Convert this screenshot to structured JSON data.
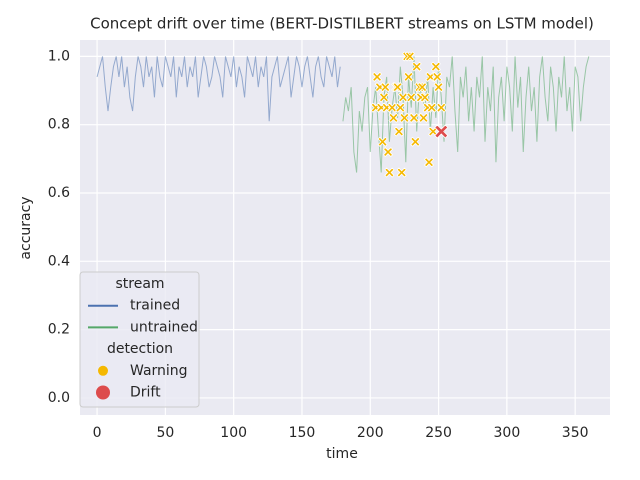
{
  "chart_data": {
    "type": "line",
    "title": "Concept drift over time (BERT-DISTILBERT streams on LSTM model)",
    "xlabel": "time",
    "ylabel": "accuracy",
    "xlim": [
      -12.5,
      375.5
    ],
    "ylim": [
      -0.05,
      1.048
    ],
    "xticks": [
      0,
      50,
      100,
      150,
      200,
      250,
      300,
      350
    ],
    "yticks": [
      {
        "value": 0,
        "label": "0.0"
      },
      0.2,
      0.4,
      0.6,
      0.8,
      {
        "value": 1,
        "label": "1.0"
      }
    ],
    "grid": true,
    "legend": {
      "loc": "lower left",
      "series_title": "stream",
      "detections_title": "detection"
    },
    "series": [
      {
        "name": "trained",
        "color": "#4c72b0",
        "x": [
          0,
          2,
          4,
          6,
          8,
          10,
          12,
          14,
          16,
          18,
          20,
          22,
          24,
          26,
          28,
          30,
          32,
          34,
          36,
          38,
          40,
          42,
          44,
          46,
          48,
          50,
          52,
          54,
          56,
          58,
          60,
          62,
          64,
          66,
          68,
          70,
          72,
          74,
          76,
          78,
          80,
          82,
          84,
          86,
          88,
          90,
          92,
          94,
          96,
          98,
          100,
          102,
          104,
          106,
          108,
          110,
          112,
          114,
          116,
          118,
          120,
          122,
          124,
          126,
          128,
          130,
          132,
          134,
          136,
          138,
          140,
          142,
          144,
          146,
          148,
          150,
          152,
          154,
          156,
          158,
          160,
          162,
          164,
          166,
          168,
          170,
          172,
          174,
          176,
          178
        ],
        "values": [
          0.94,
          0.97,
          1.0,
          0.91,
          0.84,
          0.91,
          0.97,
          1.0,
          0.94,
          1.0,
          0.91,
          0.97,
          0.88,
          0.84,
          0.94,
          1.0,
          0.97,
          0.91,
          1.0,
          0.94,
          0.97,
          0.88,
          1.0,
          0.94,
          0.91,
          1.0,
          0.97,
          0.94,
          1.0,
          0.88,
          0.97,
          0.94,
          1.0,
          0.91,
          0.97,
          0.94,
          1.0,
          0.88,
          0.94,
          1.0,
          0.97,
          0.91,
          0.94,
          1.0,
          0.97,
          0.94,
          0.88,
          1.0,
          0.97,
          0.94,
          1.0,
          0.91,
          0.97,
          0.94,
          0.88,
          1.0,
          0.97,
          0.94,
          1.0,
          0.91,
          0.97,
          0.94,
          1.0,
          0.81,
          0.94,
          0.97,
          1.0,
          0.91,
          0.94,
          0.97,
          1.0,
          0.88,
          0.94,
          1.0,
          0.97,
          0.91,
          0.97,
          1.0,
          0.94,
          0.88,
          0.97,
          1.0,
          0.94,
          0.91,
          1.0,
          0.97,
          0.94,
          1.0,
          0.91,
          0.97
        ]
      },
      {
        "name": "untrained",
        "color": "#55a868",
        "x": [
          180,
          182,
          184,
          186,
          188,
          190,
          192,
          194,
          196,
          198,
          200,
          202,
          204,
          206,
          208,
          210,
          212,
          214,
          216,
          218,
          220,
          222,
          224,
          226,
          228,
          230,
          232,
          234,
          236,
          238,
          240,
          242,
          244,
          246,
          248,
          250,
          252,
          254,
          256,
          258,
          260,
          262,
          264,
          266,
          268,
          270,
          272,
          274,
          276,
          278,
          280,
          282,
          284,
          286,
          288,
          290,
          292,
          294,
          296,
          298,
          300,
          302,
          304,
          306,
          308,
          310,
          312,
          314,
          316,
          318,
          320,
          322,
          324,
          326,
          328,
          330,
          332,
          334,
          336,
          338,
          340,
          342,
          344,
          346,
          348,
          350,
          352,
          354,
          356,
          358,
          360
        ],
        "values": [
          0.81,
          0.88,
          0.84,
          0.91,
          0.72,
          0.66,
          0.84,
          0.78,
          0.88,
          0.91,
          0.72,
          0.85,
          0.91,
          0.78,
          0.66,
          0.88,
          0.94,
          0.75,
          0.85,
          0.91,
          0.82,
          0.97,
          0.88,
          0.69,
          0.94,
          0.85,
          1.0,
          0.78,
          0.91,
          0.88,
          0.85,
          0.94,
          0.78,
          0.91,
          0.82,
          0.97,
          0.88,
          0.75,
          0.94,
          0.91,
          1.0,
          0.84,
          0.72,
          0.94,
          0.88,
          0.97,
          0.81,
          0.91,
          0.78,
          0.94,
          0.88,
          1.0,
          0.75,
          0.91,
          0.84,
          0.97,
          0.69,
          0.88,
          0.94,
          0.81,
          0.97,
          0.91,
          0.78,
          1.0,
          0.85,
          0.94,
          0.72,
          0.88,
          0.97,
          0.84,
          0.91,
          0.75,
          0.94,
          1.0,
          0.88,
          0.81,
          0.97,
          0.91,
          0.78,
          0.94,
          0.88,
          1.0,
          0.84,
          0.91,
          0.78,
          0.97,
          0.94,
          0.81,
          0.91,
          0.97,
          1.0
        ]
      }
    ],
    "detections": [
      {
        "name": "Warning",
        "color": "#f5b800",
        "x": [
          205,
          204,
          207,
          208,
          209,
          210,
          211,
          212,
          213,
          214,
          216,
          217,
          219,
          220,
          221,
          222,
          223,
          224,
          225,
          227,
          228,
          229,
          230,
          232,
          233,
          234,
          236,
          237,
          238,
          239,
          240,
          242,
          243,
          244,
          245,
          246,
          248,
          249,
          250,
          252
        ],
        "values": [
          0.94,
          0.85,
          0.91,
          0.85,
          0.75,
          0.88,
          0.91,
          0.85,
          0.72,
          0.66,
          0.85,
          0.82,
          0.91,
          0.91,
          0.78,
          0.85,
          0.66,
          0.88,
          0.82,
          1.0,
          0.94,
          1.0,
          0.88,
          0.82,
          0.75,
          0.97,
          0.91,
          0.88,
          0.91,
          0.82,
          0.88,
          0.85,
          0.69,
          0.94,
          0.85,
          0.78,
          0.97,
          0.94,
          0.91,
          0.85
        ]
      },
      {
        "name": "Drift",
        "color": "#dd4c4c",
        "x": [
          252
        ],
        "values": [
          0.78
        ]
      }
    ]
  }
}
